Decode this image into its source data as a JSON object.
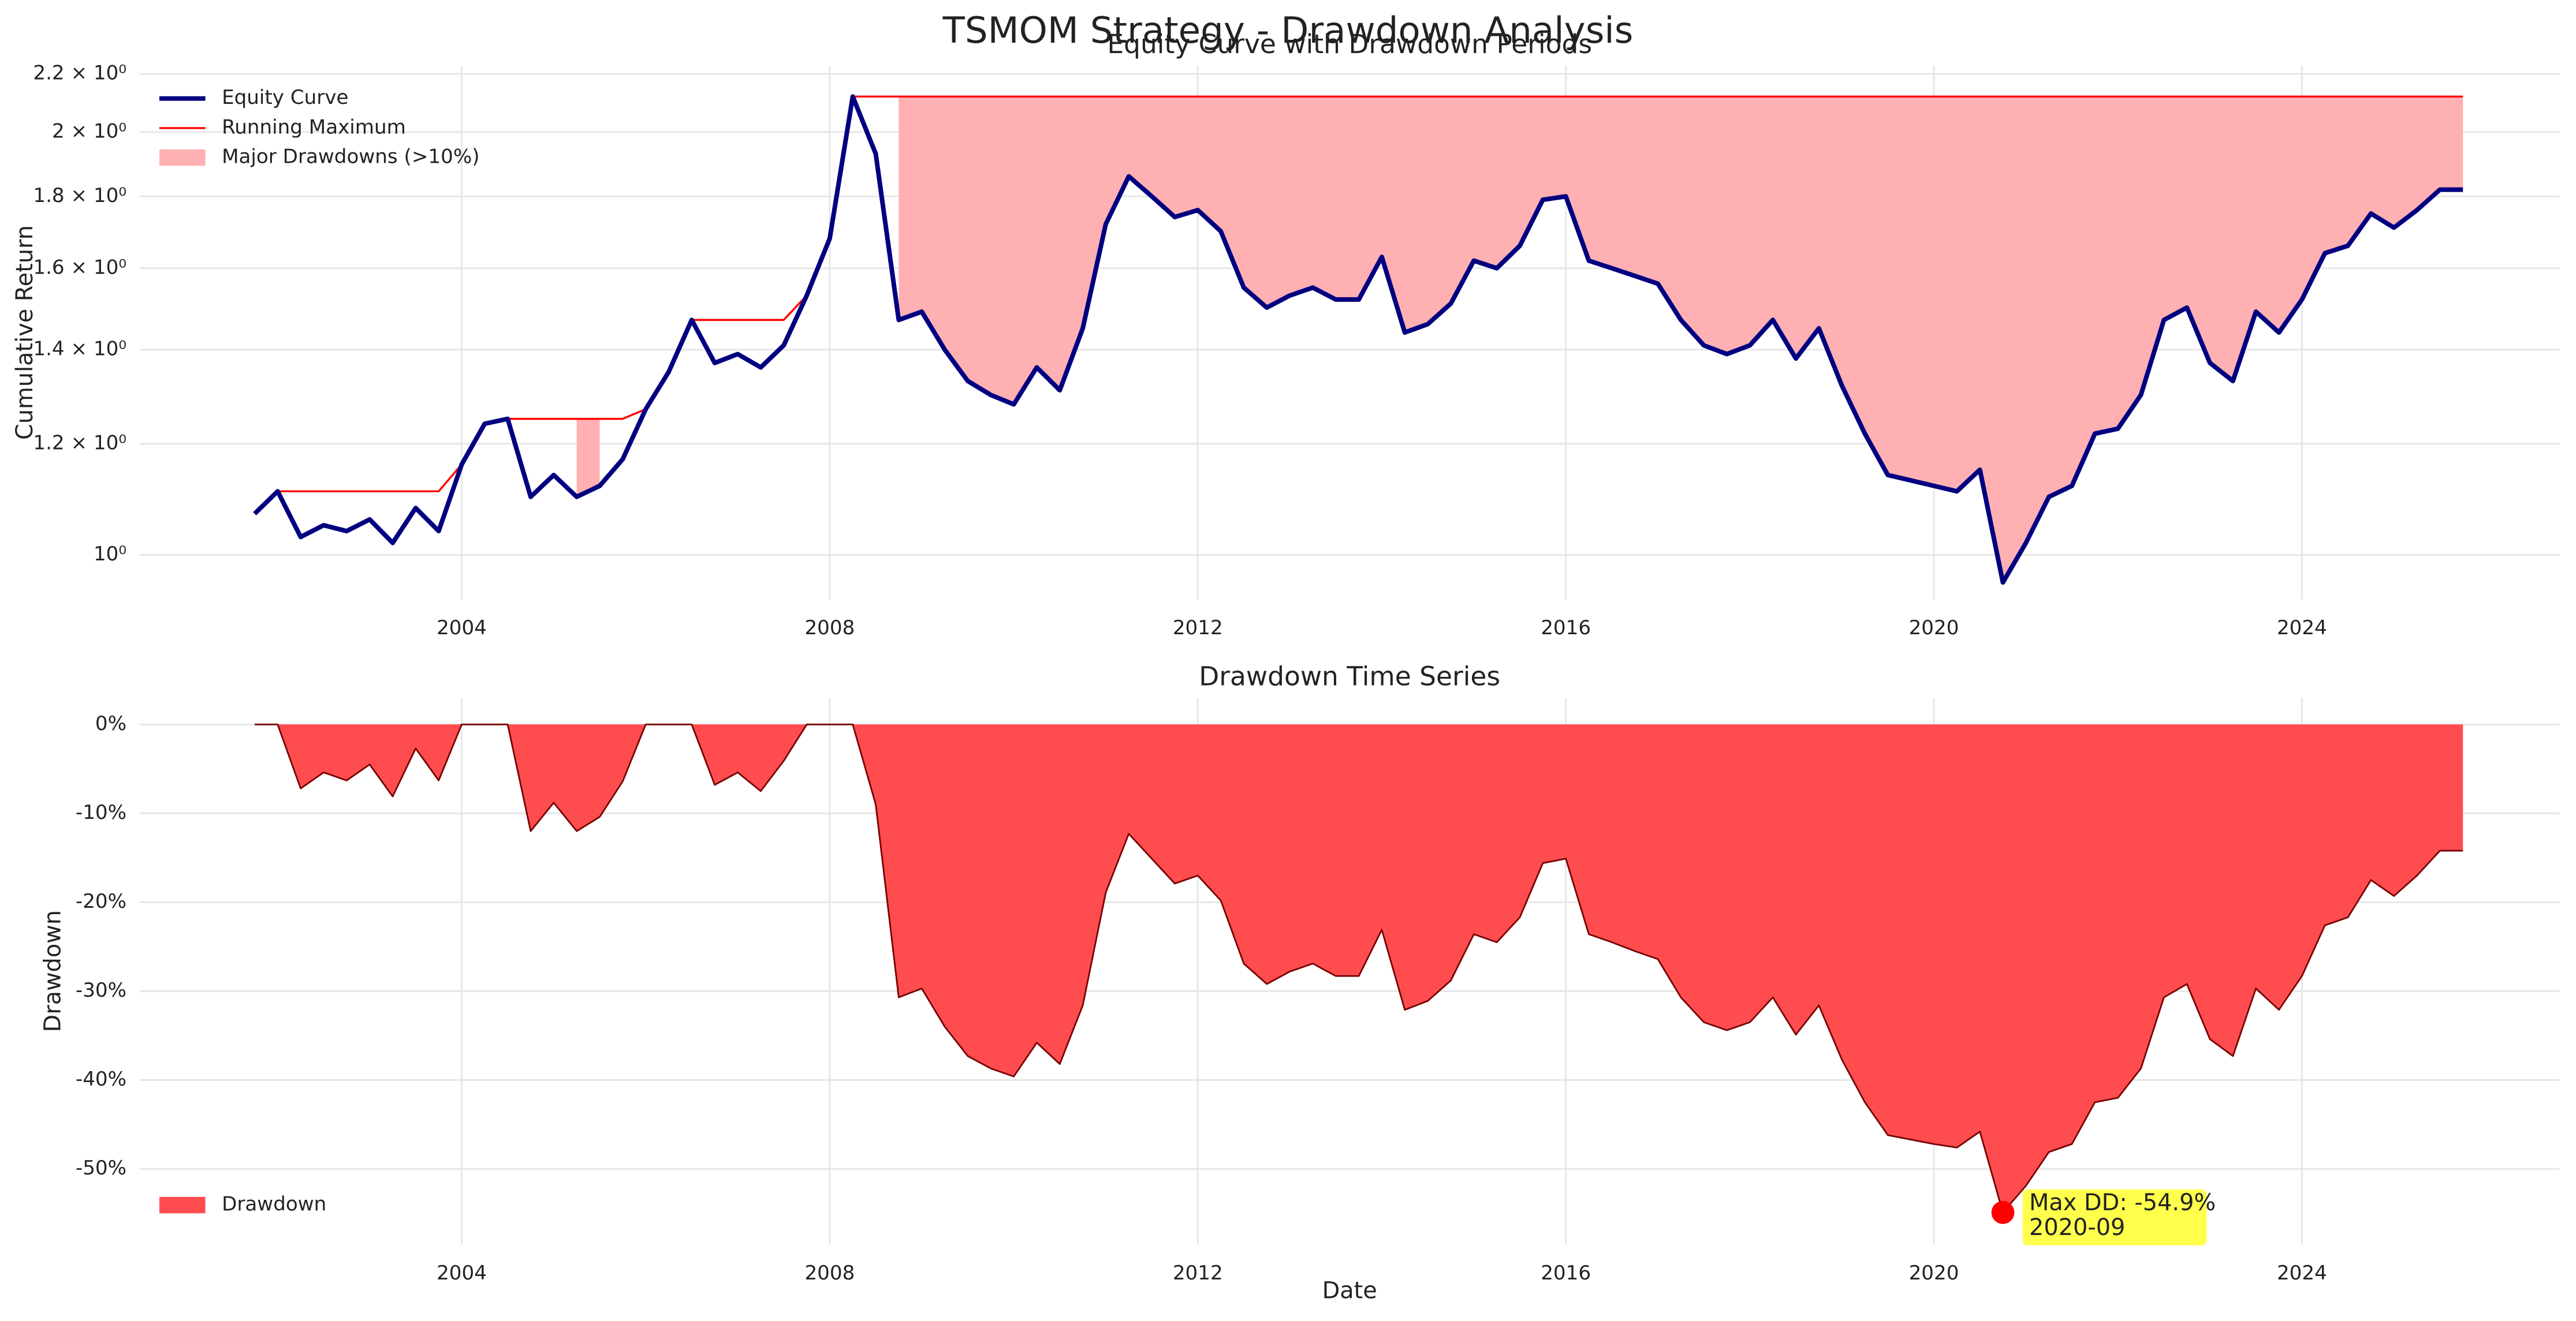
{
  "title": "TSMOM Strategy - Drawdown Analysis",
  "chart_data": [
    {
      "type": "line",
      "title": "Equity Curve with Drawdown Periods",
      "ylabel": "Cumulative Return",
      "log_y": true,
      "grid": true,
      "legend": "upper left",
      "xlim": [
        2000.5,
        2026.8
      ],
      "ylim": [
        0.93,
        2.23
      ],
      "xticks": [
        2004,
        2008,
        2012,
        2016,
        2020,
        2024
      ],
      "yticks": [
        {
          "value": 1,
          "label": "10⁰"
        },
        {
          "value": 1.2,
          "label": "1.2 × 10⁰"
        },
        {
          "value": 1.4,
          "label": "1.4 × 10⁰"
        },
        {
          "value": 1.6,
          "label": "1.6 × 10⁰"
        },
        {
          "value": 1.8,
          "label": "1.8 × 10⁰"
        },
        {
          "value": 2,
          "label": "2 × 10⁰"
        },
        {
          "value": 2.2,
          "label": "2.2 × 10⁰"
        }
      ],
      "x": [
        2001.75,
        2002,
        2002.25,
        2002.5,
        2002.75,
        2003,
        2003.25,
        2003.5,
        2003.75,
        2004,
        2004.25,
        2004.5,
        2004.75,
        2005,
        2005.25,
        2005.5,
        2005.75,
        2006,
        2006.25,
        2006.5,
        2006.75,
        2007,
        2007.25,
        2007.5,
        2007.75,
        2008,
        2008.25,
        2008.5,
        2008.75,
        2009,
        2009.25,
        2009.5,
        2009.75,
        2010,
        2010.25,
        2010.5,
        2010.75,
        2011,
        2011.25,
        2011.5,
        2011.75,
        2012,
        2012.25,
        2012.5,
        2012.75,
        2013,
        2013.25,
        2013.5,
        2013.75,
        2014,
        2014.25,
        2014.5,
        2014.75,
        2015,
        2015.25,
        2015.5,
        2015.75,
        2016,
        2016.25,
        2016.5,
        2016.75,
        2017,
        2017.25,
        2017.5,
        2017.75,
        2018,
        2018.25,
        2018.5,
        2018.75,
        2019,
        2019.25,
        2019.5,
        2019.75,
        2020,
        2020.25,
        2020.5,
        2020.75,
        2021,
        2021.25,
        2021.5,
        2021.75,
        2022,
        2022.25,
        2022.5,
        2022.75,
        2023,
        2023.25,
        2023.5,
        2023.75,
        2024,
        2024.25,
        2024.5,
        2024.75,
        2025,
        2025.25,
        2025.5,
        2025.75
      ],
      "series": [
        {
          "name": "Equity Curve",
          "color": "#000080",
          "values": [
            1.07,
            1.11,
            1.03,
            1.05,
            1.04,
            1.06,
            1.02,
            1.08,
            1.04,
            1.16,
            1.24,
            1.25,
            1.1,
            1.14,
            1.1,
            1.12,
            1.17,
            1.27,
            1.35,
            1.47,
            1.37,
            1.39,
            1.36,
            1.41,
            1.53,
            1.68,
            2.12,
            1.93,
            1.47,
            1.49,
            1.4,
            1.33,
            1.3,
            1.28,
            1.36,
            1.31,
            1.45,
            1.72,
            1.86,
            1.8,
            1.74,
            1.76,
            1.7,
            1.55,
            1.5,
            1.53,
            1.55,
            1.52,
            1.52,
            1.63,
            1.44,
            1.46,
            1.51,
            1.62,
            1.6,
            1.66,
            1.79,
            1.8,
            1.62,
            1.6,
            1.58,
            1.56,
            1.47,
            1.41,
            1.39,
            1.41,
            1.47,
            1.38,
            1.45,
            1.32,
            1.22,
            1.14,
            1.13,
            1.12,
            1.11,
            1.15,
            0.956,
            1.02,
            1.1,
            1.12,
            1.22,
            1.23,
            1.3,
            1.47,
            1.5,
            1.37,
            1.33,
            1.49,
            1.44,
            1.52,
            1.64,
            1.66,
            1.75,
            1.71,
            1.76,
            1.82,
            1.82
          ]
        },
        {
          "name": "Running Maximum",
          "color": "#ff0000",
          "values": [
            1.07,
            1.11,
            1.11,
            1.11,
            1.11,
            1.11,
            1.11,
            1.11,
            1.11,
            1.16,
            1.24,
            1.25,
            1.25,
            1.25,
            1.25,
            1.25,
            1.25,
            1.27,
            1.35,
            1.47,
            1.47,
            1.47,
            1.47,
            1.47,
            1.53,
            1.68,
            2.12,
            2.12,
            2.12,
            2.12,
            2.12,
            2.12,
            2.12,
            2.12,
            2.12,
            2.12,
            2.12,
            2.12,
            2.12,
            2.12,
            2.12,
            2.12,
            2.12,
            2.12,
            2.12,
            2.12,
            2.12,
            2.12,
            2.12,
            2.12,
            2.12,
            2.12,
            2.12,
            2.12,
            2.12,
            2.12,
            2.12,
            2.12,
            2.12,
            2.12,
            2.12,
            2.12,
            2.12,
            2.12,
            2.12,
            2.12,
            2.12,
            2.12,
            2.12,
            2.12,
            2.12,
            2.12,
            2.12,
            2.12,
            2.12,
            2.12,
            2.12,
            2.12,
            2.12,
            2.12,
            2.12,
            2.12,
            2.12,
            2.12,
            2.12,
            2.12,
            2.12,
            2.12,
            2.12,
            2.12,
            2.12,
            2.12,
            2.12,
            2.12,
            2.12,
            2.12,
            2.12
          ]
        },
        {
          "name": "Major Drawdowns (>10%)",
          "color": "#ffb0b3",
          "threshold": 10
        }
      ]
    },
    {
      "type": "area",
      "title": "Drawdown Time Series",
      "xlabel": "Date",
      "ylabel": "Drawdown",
      "grid": true,
      "legend": "lower left",
      "xlim": [
        2000.5,
        2026.8
      ],
      "ylim": [
        -58.5,
        3
      ],
      "xticks": [
        2004,
        2008,
        2012,
        2016,
        2020,
        2024
      ],
      "yticks": [
        {
          "value": 0,
          "label": "0%"
        },
        {
          "value": -10,
          "label": "-10%"
        },
        {
          "value": -20,
          "label": "-20%"
        },
        {
          "value": -30,
          "label": "-30%"
        },
        {
          "value": -40,
          "label": "-40%"
        },
        {
          "value": -50,
          "label": "-50%"
        }
      ],
      "x": [
        2001.75,
        2002,
        2002.25,
        2002.5,
        2002.75,
        2003,
        2003.25,
        2003.5,
        2003.75,
        2004,
        2004.25,
        2004.5,
        2004.75,
        2005,
        2005.25,
        2005.5,
        2005.75,
        2006,
        2006.25,
        2006.5,
        2006.75,
        2007,
        2007.25,
        2007.5,
        2007.75,
        2008,
        2008.25,
        2008.5,
        2008.75,
        2009,
        2009.25,
        2009.5,
        2009.75,
        2010,
        2010.25,
        2010.5,
        2010.75,
        2011,
        2011.25,
        2011.5,
        2011.75,
        2012,
        2012.25,
        2012.5,
        2012.75,
        2013,
        2013.25,
        2013.5,
        2013.75,
        2014,
        2014.25,
        2014.5,
        2014.75,
        2015,
        2015.25,
        2015.5,
        2015.75,
        2016,
        2016.25,
        2016.5,
        2016.75,
        2017,
        2017.25,
        2017.5,
        2017.75,
        2018,
        2018.25,
        2018.5,
        2018.75,
        2019,
        2019.25,
        2019.5,
        2019.75,
        2020,
        2020.25,
        2020.5,
        2020.75,
        2021,
        2021.25,
        2021.5,
        2021.75,
        2022,
        2022.25,
        2022.5,
        2022.75,
        2023,
        2023.25,
        2023.5,
        2023.75,
        2024,
        2024.25,
        2024.5,
        2024.75,
        2025,
        2025.25,
        2025.5,
        2025.75
      ],
      "series": [
        {
          "name": "Drawdown",
          "color": "#ff4d4f",
          "values": [
            0,
            0,
            -7.2,
            -5.4,
            -6.3,
            -4.5,
            -8.1,
            -2.7,
            -6.3,
            0,
            0,
            0,
            -12.0,
            -8.8,
            -12.0,
            -10.4,
            -6.4,
            0,
            0,
            0,
            -6.8,
            -5.4,
            -7.5,
            -4.1,
            0,
            0,
            0,
            -9.0,
            -30.7,
            -29.7,
            -34.0,
            -37.3,
            -38.7,
            -39.6,
            -35.8,
            -38.2,
            -31.6,
            -18.9,
            -12.3,
            -15.1,
            -17.9,
            -17.0,
            -19.8,
            -26.9,
            -29.2,
            -27.8,
            -26.9,
            -28.3,
            -28.3,
            -23.1,
            -32.1,
            -31.1,
            -28.8,
            -23.6,
            -24.5,
            -21.7,
            -15.6,
            -15.1,
            -23.6,
            -24.5,
            -25.5,
            -26.4,
            -30.7,
            -33.5,
            -34.4,
            -33.5,
            -30.7,
            -34.9,
            -31.6,
            -37.7,
            -42.5,
            -46.2,
            -46.7,
            -47.2,
            -47.6,
            -45.8,
            -54.9,
            -51.9,
            -48.1,
            -47.2,
            -42.5,
            -42.0,
            -38.7,
            -30.7,
            -29.2,
            -35.4,
            -37.3,
            -29.7,
            -32.1,
            -28.3,
            -22.6,
            -21.7,
            -17.5,
            -19.3,
            -17.0,
            -14.2,
            -14.2
          ]
        }
      ],
      "annotation": [
        "Max DD: -54.9%",
        "2020-09"
      ]
    }
  ]
}
